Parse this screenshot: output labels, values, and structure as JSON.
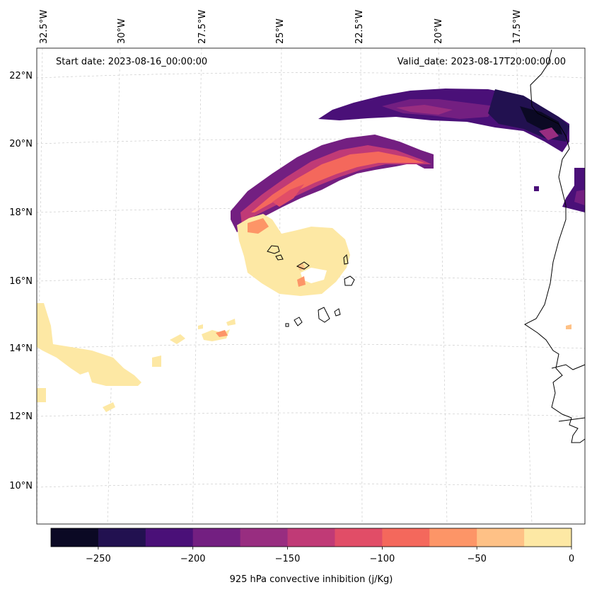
{
  "map": {
    "start_label": "Start date: 2023-08-16_00:00:00",
    "valid_label": "Valid_date: 2023-08-17T20:00:00.00",
    "lon_labels": [
      "32.5°W",
      "30°W",
      "27.5°W",
      "25°W",
      "22.5°W",
      "20°W",
      "17.5°W"
    ],
    "lat_labels": [
      "22°N",
      "20°N",
      "18°N",
      "16°N",
      "14°N",
      "12°N",
      "10°N"
    ]
  },
  "colorbar": {
    "title": "925 hPa convective inhibition (j/Kg)",
    "tick_labels": [
      "−250",
      "−200",
      "−150",
      "−100",
      "−50",
      "0"
    ],
    "colors": [
      "#0b0924",
      "#221150",
      "#4a1078",
      "#731f81",
      "#982d80",
      "#c03a76",
      "#e14d67",
      "#f4685c",
      "#fd9567",
      "#fec186",
      "#fde8a4"
    ]
  }
}
